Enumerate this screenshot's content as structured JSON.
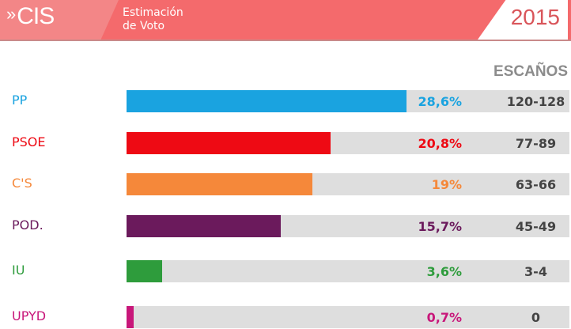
{
  "header": {
    "brand": "CIS",
    "brand_icon": "double-chevron-right",
    "subtitle_line1": "Estimación",
    "subtitle_line2": "de Voto",
    "year": "2015"
  },
  "chart_data": {
    "type": "bar",
    "orientation": "horizontal",
    "title": "Estimación de Voto 2015",
    "seats_header": "ESCAÑOS",
    "categories": [
      "PP",
      "PSOE",
      "C'S",
      "POD.",
      "IU",
      "UPYD"
    ],
    "values": [
      28.6,
      20.8,
      19,
      15.7,
      3.6,
      0.7
    ],
    "value_labels": [
      "28,6%",
      "20,8%",
      "19%",
      "15,7%",
      "3,6%",
      "0,7%"
    ],
    "seats": [
      "120-128",
      "77-89",
      "63-66",
      "45-49",
      "3-4",
      "0"
    ],
    "colors": [
      "#1aa3e0",
      "#ee0a14",
      "#f5883a",
      "#6b1a5c",
      "#2e9c3c",
      "#c8177a"
    ],
    "xlim": [
      0,
      45.2
    ]
  }
}
